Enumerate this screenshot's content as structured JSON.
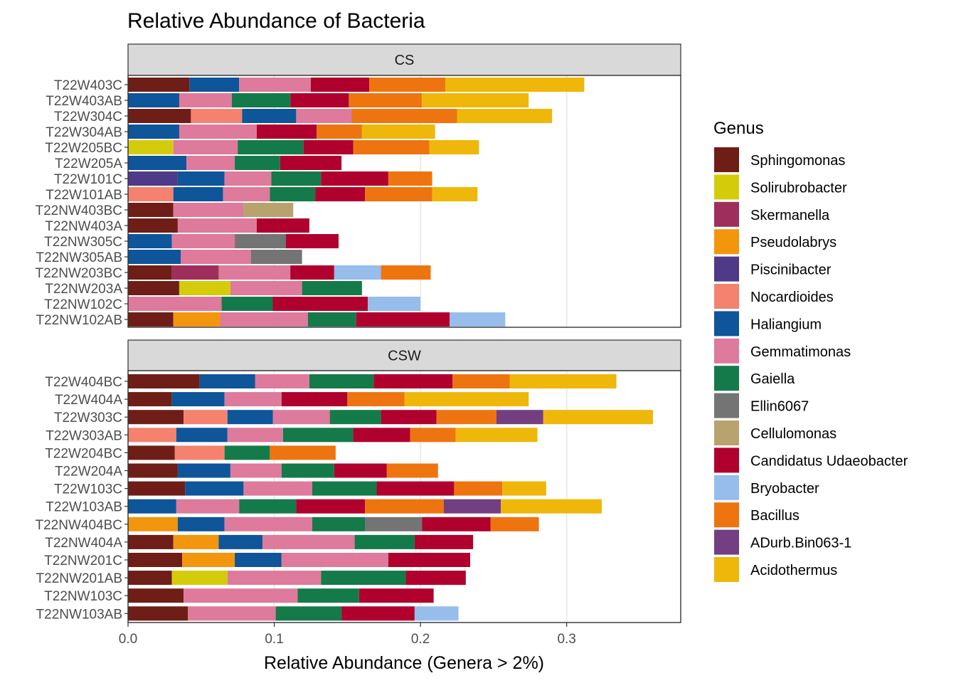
{
  "chart_data": {
    "type": "bar",
    "orientation": "horizontal",
    "stacked": true,
    "title": "Relative Abundance of Bacteria",
    "xlabel": "Relative Abundance (Genera > 2%)",
    "ylabel": "",
    "xlim": [
      0,
      0.378
    ],
    "x_ticks": [
      0.0,
      0.1,
      0.2,
      0.3
    ],
    "x_tick_labels": [
      "0.0",
      "0.1",
      "0.2",
      "0.3"
    ],
    "grid": "vertical major lines",
    "legend": {
      "title": "Genus",
      "position": "right",
      "entries": [
        {
          "name": "Sphingomonas",
          "color": "#6E1E16"
        },
        {
          "name": "Solirubrobacter",
          "color": "#D4CC0B"
        },
        {
          "name": "Skermanella",
          "color": "#9E2F5C"
        },
        {
          "name": "Pseudolabrys",
          "color": "#F2960D"
        },
        {
          "name": "Piscinibacter",
          "color": "#4E3A87"
        },
        {
          "name": "Nocardioides",
          "color": "#F4826E"
        },
        {
          "name": "Haliangium",
          "color": "#0E5599"
        },
        {
          "name": "Gemmatimonas",
          "color": "#DE7A9C"
        },
        {
          "name": "Gaiella",
          "color": "#147A4A"
        },
        {
          "name": "Ellin6067",
          "color": "#747474"
        },
        {
          "name": "Cellulomonas",
          "color": "#B8A36E"
        },
        {
          "name": "Candidatus Udaeobacter",
          "color": "#B0002E"
        },
        {
          "name": "Bryobacter",
          "color": "#96BDEC"
        },
        {
          "name": "Bacillus",
          "color": "#EE7410"
        },
        {
          "name": "ADurb.Bin063-1",
          "color": "#733F82"
        },
        {
          "name": "Acidothermus",
          "color": "#EEB709"
        }
      ]
    },
    "facets": [
      {
        "label": "CS",
        "bars": [
          {
            "sample": "T22W403C",
            "segments": [
              [
                "Sphingomonas",
                0.042
              ],
              [
                "Haliangium",
                0.034
              ],
              [
                "Gemmatimonas",
                0.049
              ],
              [
                "Candidatus Udaeobacter",
                0.04
              ],
              [
                "Bacillus",
                0.052
              ],
              [
                "Acidothermus",
                0.095
              ]
            ]
          },
          {
            "sample": "T22W403AB",
            "segments": [
              [
                "Haliangium",
                0.035
              ],
              [
                "Gemmatimonas",
                0.036
              ],
              [
                "Gaiella",
                0.04
              ],
              [
                "Candidatus Udaeobacter",
                0.04
              ],
              [
                "Bacillus",
                0.05
              ],
              [
                "Acidothermus",
                0.073
              ]
            ]
          },
          {
            "sample": "T22W304C",
            "segments": [
              [
                "Sphingomonas",
                0.043
              ],
              [
                "Nocardioides",
                0.035
              ],
              [
                "Haliangium",
                0.037
              ],
              [
                "Gemmatimonas",
                0.038
              ],
              [
                "Bacillus",
                0.072
              ],
              [
                "Acidothermus",
                0.065
              ]
            ]
          },
          {
            "sample": "T22W304AB",
            "segments": [
              [
                "Haliangium",
                0.035
              ],
              [
                "Gemmatimonas",
                0.053
              ],
              [
                "Candidatus Udaeobacter",
                0.041
              ],
              [
                "Bacillus",
                0.031
              ],
              [
                "Acidothermus",
                0.05
              ]
            ]
          },
          {
            "sample": "T22W205BC",
            "segments": [
              [
                "Solirubrobacter",
                0.031
              ],
              [
                "Gemmatimonas",
                0.044
              ],
              [
                "Gaiella",
                0.045
              ],
              [
                "Candidatus Udaeobacter",
                0.034
              ],
              [
                "Bacillus",
                0.052
              ],
              [
                "Acidothermus",
                0.034
              ]
            ]
          },
          {
            "sample": "T22W205A",
            "segments": [
              [
                "Haliangium",
                0.04
              ],
              [
                "Gemmatimonas",
                0.033
              ],
              [
                "Gaiella",
                0.031
              ],
              [
                "Candidatus Udaeobacter",
                0.042
              ]
            ]
          },
          {
            "sample": "T22W101C",
            "segments": [
              [
                "Piscinibacter",
                0.034
              ],
              [
                "Haliangium",
                0.032
              ],
              [
                "Gemmatimonas",
                0.032
              ],
              [
                "Gaiella",
                0.034
              ],
              [
                "Candidatus Udaeobacter",
                0.046
              ],
              [
                "Bacillus",
                0.03
              ]
            ]
          },
          {
            "sample": "T22W101AB",
            "segments": [
              [
                "Nocardioides",
                0.031
              ],
              [
                "Haliangium",
                0.034
              ],
              [
                "Gemmatimonas",
                0.032
              ],
              [
                "Gaiella",
                0.031
              ],
              [
                "Candidatus Udaeobacter",
                0.034
              ],
              [
                "Bacillus",
                0.046
              ],
              [
                "Acidothermus",
                0.031
              ]
            ]
          },
          {
            "sample": "T22NW403BC",
            "segments": [
              [
                "Sphingomonas",
                0.031
              ],
              [
                "Gemmatimonas",
                0.048
              ],
              [
                "Cellulomonas",
                0.034
              ]
            ]
          },
          {
            "sample": "T22NW403A",
            "segments": [
              [
                "Sphingomonas",
                0.034
              ],
              [
                "Gemmatimonas",
                0.054
              ],
              [
                "Candidatus Udaeobacter",
                0.036
              ]
            ]
          },
          {
            "sample": "T22NW305C",
            "segments": [
              [
                "Haliangium",
                0.03
              ],
              [
                "Gemmatimonas",
                0.043
              ],
              [
                "Ellin6067",
                0.035
              ],
              [
                "Candidatus Udaeobacter",
                0.036
              ]
            ]
          },
          {
            "sample": "T22NW305AB",
            "segments": [
              [
                "Haliangium",
                0.036
              ],
              [
                "Gemmatimonas",
                0.048
              ],
              [
                "Ellin6067",
                0.035
              ]
            ]
          },
          {
            "sample": "T22NW203BC",
            "segments": [
              [
                "Sphingomonas",
                0.03
              ],
              [
                "Skermanella",
                0.032
              ],
              [
                "Gemmatimonas",
                0.049
              ],
              [
                "Candidatus Udaeobacter",
                0.03
              ],
              [
                "Bryobacter",
                0.032
              ],
              [
                "Bacillus",
                0.034
              ]
            ]
          },
          {
            "sample": "T22NW203A",
            "segments": [
              [
                "Sphingomonas",
                0.035
              ],
              [
                "Solirubrobacter",
                0.035
              ],
              [
                "Gemmatimonas",
                0.049
              ],
              [
                "Gaiella",
                0.041
              ]
            ]
          },
          {
            "sample": "T22NW102C",
            "segments": [
              [
                "Gemmatimonas",
                0.064
              ],
              [
                "Gaiella",
                0.035
              ],
              [
                "Candidatus Udaeobacter",
                0.065
              ],
              [
                "Bryobacter",
                0.036
              ]
            ]
          },
          {
            "sample": "T22NW102AB",
            "segments": [
              [
                "Sphingomonas",
                0.031
              ],
              [
                "Pseudolabrys",
                0.032
              ],
              [
                "Gemmatimonas",
                0.06
              ],
              [
                "Gaiella",
                0.033
              ],
              [
                "Candidatus Udaeobacter",
                0.064
              ],
              [
                "Bryobacter",
                0.038
              ]
            ]
          }
        ]
      },
      {
        "label": "CSW",
        "bars": [
          {
            "sample": "T22W404BC",
            "segments": [
              [
                "Sphingomonas",
                0.049
              ],
              [
                "Haliangium",
                0.038
              ],
              [
                "Gemmatimonas",
                0.037
              ],
              [
                "Gaiella",
                0.044
              ],
              [
                "Candidatus Udaeobacter",
                0.054
              ],
              [
                "Bacillus",
                0.039
              ],
              [
                "Acidothermus",
                0.073
              ]
            ]
          },
          {
            "sample": "T22W404A",
            "segments": [
              [
                "Sphingomonas",
                0.03
              ],
              [
                "Haliangium",
                0.036
              ],
              [
                "Gemmatimonas",
                0.039
              ],
              [
                "Candidatus Udaeobacter",
                0.045
              ],
              [
                "Bacillus",
                0.039
              ],
              [
                "Acidothermus",
                0.085
              ]
            ]
          },
          {
            "sample": "T22W303C",
            "segments": [
              [
                "Sphingomonas",
                0.038
              ],
              [
                "Nocardioides",
                0.03
              ],
              [
                "Haliangium",
                0.031
              ],
              [
                "Gemmatimonas",
                0.039
              ],
              [
                "Gaiella",
                0.035
              ],
              [
                "Candidatus Udaeobacter",
                0.038
              ],
              [
                "Bacillus",
                0.041
              ],
              [
                "ADurb.Bin063-1",
                0.032
              ],
              [
                "Acidothermus",
                0.075
              ]
            ]
          },
          {
            "sample": "T22W303AB",
            "segments": [
              [
                "Nocardioides",
                0.033
              ],
              [
                "Haliangium",
                0.035
              ],
              [
                "Gemmatimonas",
                0.038
              ],
              [
                "Gaiella",
                0.048
              ],
              [
                "Candidatus Udaeobacter",
                0.039
              ],
              [
                "Bacillus",
                0.031
              ],
              [
                "Acidothermus",
                0.056
              ]
            ]
          },
          {
            "sample": "T22W204BC",
            "segments": [
              [
                "Sphingomonas",
                0.032
              ],
              [
                "Nocardioides",
                0.034
              ],
              [
                "Gaiella",
                0.031
              ],
              [
                "Bacillus",
                0.045
              ]
            ]
          },
          {
            "sample": "T22W204A",
            "segments": [
              [
                "Sphingomonas",
                0.034
              ],
              [
                "Haliangium",
                0.036
              ],
              [
                "Gemmatimonas",
                0.035
              ],
              [
                "Gaiella",
                0.036
              ],
              [
                "Candidatus Udaeobacter",
                0.036
              ],
              [
                "Bacillus",
                0.035
              ]
            ]
          },
          {
            "sample": "T22W103C",
            "segments": [
              [
                "Sphingomonas",
                0.039
              ],
              [
                "Haliangium",
                0.04
              ],
              [
                "Gemmatimonas",
                0.047
              ],
              [
                "Gaiella",
                0.044
              ],
              [
                "Candidatus Udaeobacter",
                0.053
              ],
              [
                "Bacillus",
                0.033
              ],
              [
                "Acidothermus",
                0.03
              ]
            ]
          },
          {
            "sample": "T22W103AB",
            "segments": [
              [
                "Haliangium",
                0.033
              ],
              [
                "Gemmatimonas",
                0.043
              ],
              [
                "Gaiella",
                0.039
              ],
              [
                "Candidatus Udaeobacter",
                0.047
              ],
              [
                "Bacillus",
                0.054
              ],
              [
                "ADurb.Bin063-1",
                0.039
              ],
              [
                "Acidothermus",
                0.069
              ]
            ]
          },
          {
            "sample": "T22NW404BC",
            "segments": [
              [
                "Pseudolabrys",
                0.034
              ],
              [
                "Haliangium",
                0.032
              ],
              [
                "Gemmatimonas",
                0.06
              ],
              [
                "Gaiella",
                0.036
              ],
              [
                "Ellin6067",
                0.039
              ],
              [
                "Candidatus Udaeobacter",
                0.047
              ],
              [
                "Bacillus",
                0.033
              ]
            ]
          },
          {
            "sample": "T22NW404A",
            "segments": [
              [
                "Sphingomonas",
                0.031
              ],
              [
                "Pseudolabrys",
                0.031
              ],
              [
                "Haliangium",
                0.03
              ],
              [
                "Gemmatimonas",
                0.063
              ],
              [
                "Gaiella",
                0.041
              ],
              [
                "Candidatus Udaeobacter",
                0.04
              ]
            ]
          },
          {
            "sample": "T22NW201C",
            "segments": [
              [
                "Sphingomonas",
                0.037
              ],
              [
                "Pseudolabrys",
                0.036
              ],
              [
                "Haliangium",
                0.032
              ],
              [
                "Gemmatimonas",
                0.073
              ],
              [
                "Candidatus Udaeobacter",
                0.056
              ]
            ]
          },
          {
            "sample": "T22NW201AB",
            "segments": [
              [
                "Sphingomonas",
                0.03
              ],
              [
                "Solirubrobacter",
                0.038
              ],
              [
                "Gemmatimonas",
                0.064
              ],
              [
                "Gaiella",
                0.058
              ],
              [
                "Candidatus Udaeobacter",
                0.041
              ]
            ]
          },
          {
            "sample": "T22NW103C",
            "segments": [
              [
                "Sphingomonas",
                0.038
              ],
              [
                "Gemmatimonas",
                0.078
              ],
              [
                "Gaiella",
                0.042
              ],
              [
                "Candidatus Udaeobacter",
                0.051
              ]
            ]
          },
          {
            "sample": "T22NW103AB",
            "segments": [
              [
                "Sphingomonas",
                0.041
              ],
              [
                "Gemmatimonas",
                0.06
              ],
              [
                "Gaiella",
                0.045
              ],
              [
                "Candidatus Udaeobacter",
                0.05
              ],
              [
                "Bryobacter",
                0.03
              ]
            ]
          }
        ]
      }
    ]
  }
}
